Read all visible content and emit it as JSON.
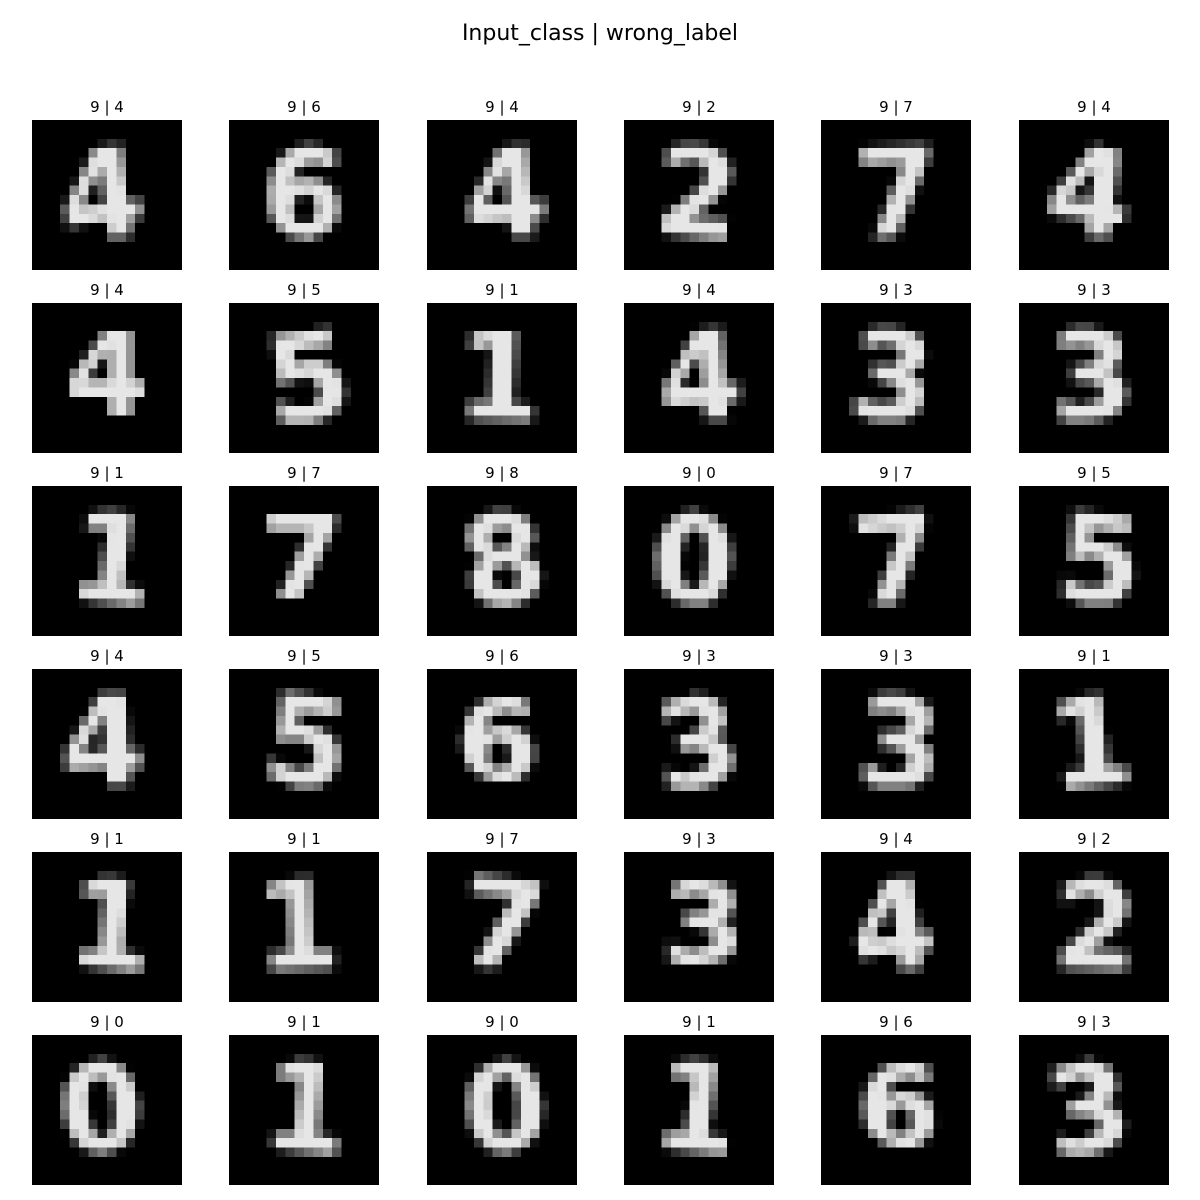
{
  "figure": {
    "title": "Input_class | wrong_label"
  },
  "grid": [
    [
      {
        "input_class": "9",
        "wrong_label": "4",
        "title": "9 | 4"
      },
      {
        "input_class": "9",
        "wrong_label": "6",
        "title": "9 | 6"
      },
      {
        "input_class": "9",
        "wrong_label": "4",
        "title": "9 | 4"
      },
      {
        "input_class": "9",
        "wrong_label": "2",
        "title": "9 | 2"
      },
      {
        "input_class": "9",
        "wrong_label": "7",
        "title": "9 | 7"
      },
      {
        "input_class": "9",
        "wrong_label": "4",
        "title": "9 | 4"
      }
    ],
    [
      {
        "input_class": "9",
        "wrong_label": "4",
        "title": "9 | 4"
      },
      {
        "input_class": "9",
        "wrong_label": "5",
        "title": "9 | 5"
      },
      {
        "input_class": "9",
        "wrong_label": "1",
        "title": "9 | 1"
      },
      {
        "input_class": "9",
        "wrong_label": "4",
        "title": "9 | 4"
      },
      {
        "input_class": "9",
        "wrong_label": "3",
        "title": "9 | 3"
      },
      {
        "input_class": "9",
        "wrong_label": "3",
        "title": "9 | 3"
      }
    ],
    [
      {
        "input_class": "9",
        "wrong_label": "1",
        "title": "9 | 1"
      },
      {
        "input_class": "9",
        "wrong_label": "7",
        "title": "9 | 7"
      },
      {
        "input_class": "9",
        "wrong_label": "8",
        "title": "9 | 8"
      },
      {
        "input_class": "9",
        "wrong_label": "0",
        "title": "9 | 0"
      },
      {
        "input_class": "9",
        "wrong_label": "7",
        "title": "9 | 7"
      },
      {
        "input_class": "9",
        "wrong_label": "5",
        "title": "9 | 5"
      }
    ],
    [
      {
        "input_class": "9",
        "wrong_label": "4",
        "title": "9 | 4"
      },
      {
        "input_class": "9",
        "wrong_label": "5",
        "title": "9 | 5"
      },
      {
        "input_class": "9",
        "wrong_label": "6",
        "title": "9 | 6"
      },
      {
        "input_class": "9",
        "wrong_label": "3",
        "title": "9 | 3"
      },
      {
        "input_class": "9",
        "wrong_label": "3",
        "title": "9 | 3"
      },
      {
        "input_class": "9",
        "wrong_label": "1",
        "title": "9 | 1"
      }
    ],
    [
      {
        "input_class": "9",
        "wrong_label": "1",
        "title": "9 | 1"
      },
      {
        "input_class": "9",
        "wrong_label": "1",
        "title": "9 | 1"
      },
      {
        "input_class": "9",
        "wrong_label": "7",
        "title": "9 | 7"
      },
      {
        "input_class": "9",
        "wrong_label": "3",
        "title": "9 | 3"
      },
      {
        "input_class": "9",
        "wrong_label": "4",
        "title": "9 | 4"
      },
      {
        "input_class": "9",
        "wrong_label": "2",
        "title": "9 | 2"
      }
    ],
    [
      {
        "input_class": "9",
        "wrong_label": "0",
        "title": "9 | 0"
      },
      {
        "input_class": "9",
        "wrong_label": "1",
        "title": "9 | 1"
      },
      {
        "input_class": "9",
        "wrong_label": "0",
        "title": "9 | 0"
      },
      {
        "input_class": "9",
        "wrong_label": "1",
        "title": "9 | 1"
      },
      {
        "input_class": "9",
        "wrong_label": "6",
        "title": "9 | 6"
      },
      {
        "input_class": "9",
        "wrong_label": "3",
        "title": "9 | 3"
      }
    ]
  ],
  "image_style": {
    "background": "#000000",
    "foreground": "#ffffff",
    "colormap": "gray"
  }
}
